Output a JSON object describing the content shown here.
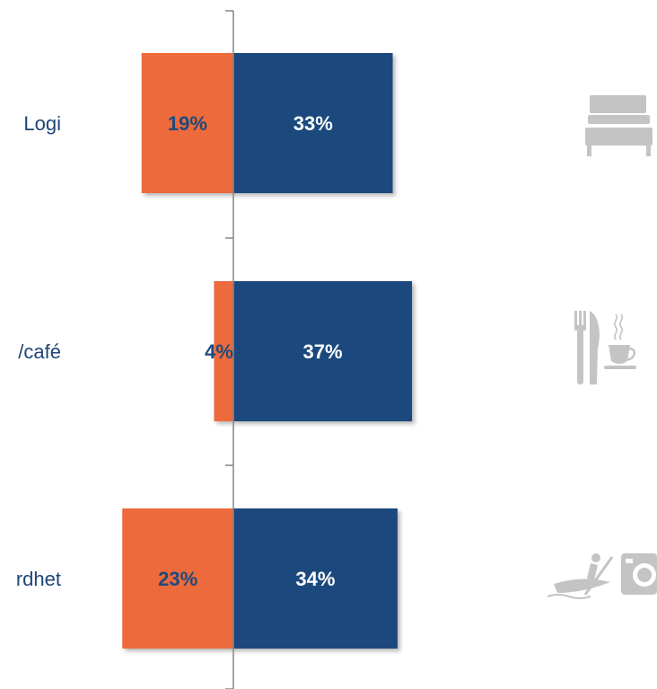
{
  "chart_data": {
    "type": "bar",
    "orientation": "horizontal-diverging",
    "categories": [
      "Logi",
      "/café",
      "rdhet"
    ],
    "series": [
      {
        "values": [
          19,
          4,
          23
        ],
        "color": "#ec6a3a"
      },
      {
        "values": [
          33,
          37,
          34
        ],
        "color": "#1f497d"
      }
    ],
    "value_labels": [
      [
        "19%",
        "4%",
        "23%"
      ],
      [
        "33%",
        "37%",
        "34%"
      ]
    ],
    "label_colors": [
      "#1f497d",
      "#ffffff"
    ],
    "icons": [
      "bed-icon",
      "cutlery-cup-icon",
      "activity-camera-icon"
    ],
    "grid": false,
    "legend": "none"
  }
}
